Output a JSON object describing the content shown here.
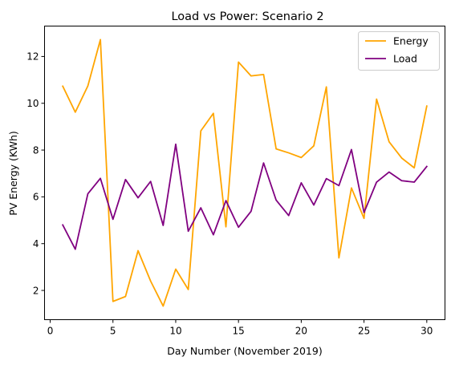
{
  "chart_data": {
    "type": "line",
    "title": "Load vs Power: Scenario 2",
    "xlabel": "Day Number (November 2019)",
    "ylabel": "PV Energy (KWh)",
    "xlim": [
      -0.45,
      31.45
    ],
    "ylim": [
      0.75,
      13.3
    ],
    "x_ticks": [
      "0",
      "5",
      "10",
      "15",
      "20",
      "25",
      "30"
    ],
    "y_ticks": [
      "2",
      "4",
      "6",
      "8",
      "10",
      "12"
    ],
    "grid": false,
    "legend_position": "upper-right",
    "x": [
      1,
      2,
      3,
      4,
      5,
      6,
      7,
      8,
      9,
      10,
      11,
      12,
      13,
      14,
      15,
      16,
      17,
      18,
      19,
      20,
      21,
      22,
      23,
      24,
      25,
      26,
      27,
      28,
      29,
      30
    ],
    "series": [
      {
        "name": "Energy",
        "color": "#ffa500",
        "values": [
          10.73,
          9.62,
          10.74,
          12.72,
          1.53,
          1.74,
          3.7,
          2.4,
          1.33,
          2.91,
          2.04,
          8.82,
          9.57,
          4.72,
          11.76,
          11.17,
          11.23,
          8.05,
          7.88,
          7.68,
          8.18,
          10.7,
          3.39,
          6.38,
          5.08,
          10.18,
          8.35,
          7.66,
          7.24,
          9.88
        ]
      },
      {
        "name": "Load",
        "color": "#800080",
        "values": [
          4.8,
          3.76,
          6.13,
          6.79,
          5.04,
          6.74,
          5.96,
          6.66,
          4.78,
          8.25,
          4.53,
          5.53,
          4.38,
          5.84,
          4.7,
          5.38,
          7.45,
          5.86,
          5.2,
          6.6,
          5.65,
          6.78,
          6.48,
          8.02,
          5.33,
          6.63,
          7.06,
          6.69,
          6.63,
          7.3
        ]
      }
    ]
  }
}
